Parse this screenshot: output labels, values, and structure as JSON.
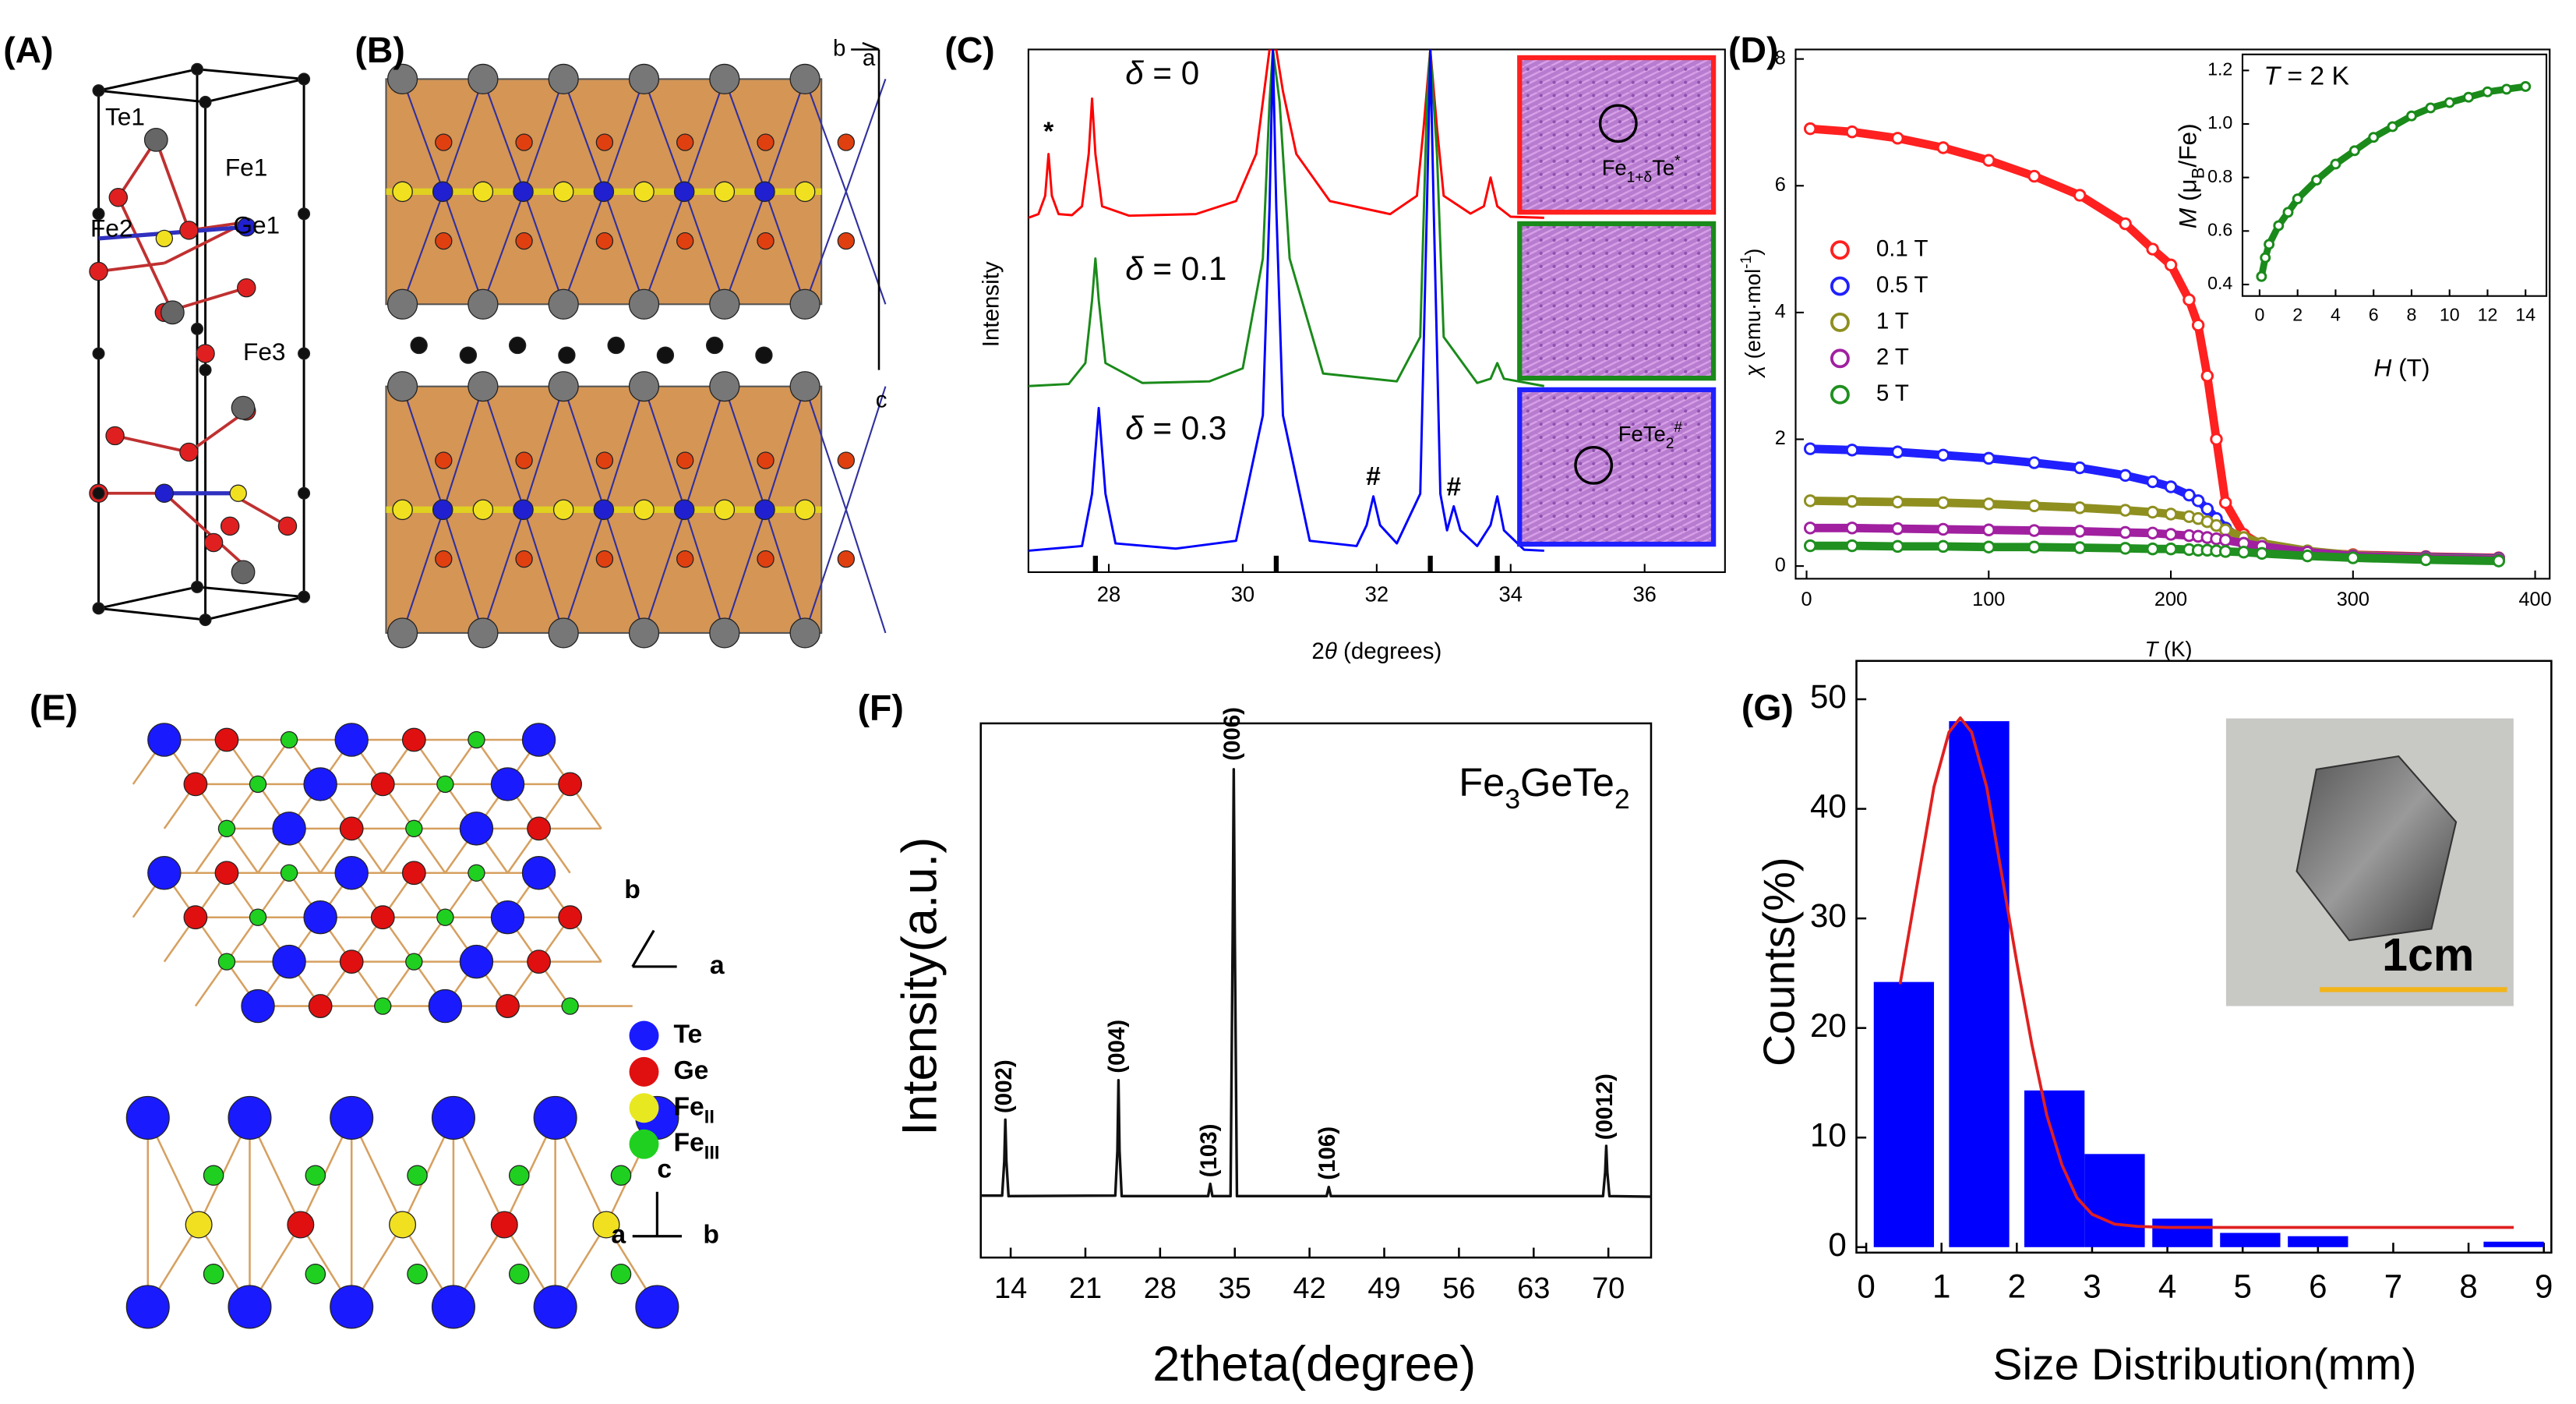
{
  "panel_labels": [
    "(A)",
    "(B)",
    "(C)",
    "(D)",
    "(E)",
    "(F)",
    "(G)"
  ],
  "panel_a": {
    "atom_labels": [
      "Te1",
      "Fe1",
      "Fe2",
      "Ge1",
      "Fe3"
    ]
  },
  "panel_b": {
    "axis_labels": [
      "b",
      "a",
      "c"
    ]
  },
  "panel_e": {
    "legend": [
      {
        "name": "Te",
        "color": "#1a1aff"
      },
      {
        "name": "Ge",
        "color": "#e01010"
      },
      {
        "name": [
          {
            "t": "Fe"
          },
          {
            "t": "II",
            "s": "sub"
          }
        ],
        "color": "#e8e820"
      },
      {
        "name": [
          {
            "t": "Fe"
          },
          {
            "t": "III",
            "s": "sub"
          }
        ],
        "color": "#20d020"
      }
    ],
    "axis_labels": [
      "b",
      "a",
      "c",
      "a",
      "b"
    ]
  },
  "chart_data": [
    {
      "type": "line",
      "y_label": "Intensity",
      "x_label": [
        {
          "t": "2"
        },
        {
          "t": "θ",
          "s": "i"
        },
        {
          "t": " (degrees)"
        }
      ],
      "xlim": [
        26.8,
        37.2
      ],
      "xticks": [
        28,
        30,
        32,
        34,
        36
      ],
      "ylim": [
        0,
        100
      ],
      "series": [
        {
          "name": [
            {
              "t": "δ",
              "s": "i"
            },
            {
              "t": " = 0"
            }
          ],
          "color": "#ff0000",
          "x": [
            26.8,
            26.95,
            27.05,
            27.1,
            27.15,
            27.25,
            27.45,
            27.6,
            27.7,
            27.75,
            27.8,
            27.9,
            28.3,
            29.3,
            29.9,
            30.2,
            30.3,
            30.4,
            30.5,
            30.6,
            30.8,
            31.3,
            32.2,
            32.6,
            32.7,
            32.8,
            32.9,
            33.0,
            33.4,
            33.6,
            33.7,
            33.8,
            34.0,
            34.5
          ],
          "values": [
            67.8,
            68.5,
            72,
            80,
            72,
            68.5,
            68.3,
            70,
            80,
            90.6,
            80,
            70,
            68.2,
            68.5,
            71,
            80,
            90,
            100,
            100,
            92,
            80,
            71,
            68.5,
            72,
            85,
            100,
            85,
            72,
            68.6,
            70,
            75.5,
            70,
            68,
            67.8
          ]
        },
        {
          "name": [
            {
              "t": "δ",
              "s": "i"
            },
            {
              "t": " = 0.1"
            }
          ],
          "color": "#1a8a1a",
          "x": [
            26.8,
            27.4,
            27.65,
            27.75,
            27.8,
            27.85,
            27.95,
            28.5,
            29.5,
            30.0,
            30.3,
            30.4,
            30.45,
            30.55,
            30.7,
            31.2,
            32.3,
            32.65,
            32.75,
            32.8,
            32.9,
            33.0,
            33.5,
            33.7,
            33.8,
            33.9,
            34.5
          ],
          "values": [
            35.6,
            36,
            40,
            52,
            60,
            52,
            40,
            36.2,
            36.5,
            39,
            60,
            90,
            100,
            90,
            60,
            38,
            36.5,
            45,
            90,
            100,
            80,
            45,
            36.2,
            37,
            40,
            37,
            35.6
          ]
        },
        {
          "name": [
            {
              "t": "δ",
              "s": "i"
            },
            {
              "t": " = 0.3"
            }
          ],
          "color": "#0000ff",
          "x": [
            26.8,
            27.6,
            27.75,
            27.85,
            27.95,
            28.1,
            29,
            29.9,
            30.3,
            30.4,
            30.45,
            30.5,
            30.6,
            31,
            31.7,
            31.85,
            31.95,
            32.05,
            32.3,
            32.65,
            32.75,
            32.8,
            32.85,
            32.95,
            33.05,
            33.15,
            33.25,
            33.5,
            33.7,
            33.8,
            33.9,
            34.2,
            34.5
          ],
          "values": [
            4.1,
            5,
            15,
            31.4,
            15,
            5.5,
            4.5,
            6,
            30,
            70,
            100,
            70,
            30,
            6,
            5,
            9,
            14.5,
            9,
            5.5,
            15,
            70,
            100,
            70,
            15,
            8,
            12.6,
            8,
            5,
            9,
            14.5,
            8,
            4.3,
            4.1
          ]
        }
      ],
      "annotations": [
        {
          "text": "*",
          "x": 27.1,
          "y": 84
        },
        {
          "text": "#",
          "x": 31.95,
          "y": 18
        },
        {
          "text": "#",
          "x": 33.15,
          "y": 16
        }
      ],
      "reference_peaks": [
        27.8,
        30.5,
        32.8,
        33.8
      ],
      "insets": [
        {
          "border": "#ff2020",
          "label": [
            {
              "t": "Fe"
            },
            {
              "t": "1+δ",
              "s": "sub"
            },
            {
              "t": "Te"
            },
            {
              "t": "*",
              "s": "sup"
            }
          ]
        },
        {
          "border": "#1a8a1a"
        },
        {
          "border": "#2020ff",
          "label": [
            {
              "t": "FeTe"
            },
            {
              "t": "2",
              "s": "sub"
            },
            {
              "t": "#",
              "s": "sup"
            }
          ]
        }
      ]
    },
    {
      "type": "scatter",
      "y_label": [
        {
          "t": "χ",
          "s": "i"
        },
        {
          "t": " (emu·mol"
        },
        {
          "t": "-1",
          "s": "sup"
        },
        {
          "t": ")"
        }
      ],
      "x_label": [
        {
          "t": "T",
          "s": "i"
        },
        {
          "t": " (K)"
        }
      ],
      "xlim": [
        -6,
        408
      ],
      "xticks": [
        0,
        100,
        200,
        300,
        400
      ],
      "ylim": [
        -0.2,
        8.15
      ],
      "yticks": [
        0,
        2,
        4,
        6,
        8
      ],
      "legend": "left",
      "series": [
        {
          "name": "0.1 T",
          "color": "#ff2020",
          "x": [
            2,
            25,
            50,
            75,
            100,
            125,
            150,
            175,
            190,
            200,
            210,
            215,
            220,
            225,
            230,
            240,
            250,
            275,
            300,
            340,
            380
          ],
          "values": [
            6.9,
            6.85,
            6.75,
            6.6,
            6.4,
            6.15,
            5.85,
            5.4,
            5.0,
            4.75,
            4.2,
            3.8,
            3.0,
            2.0,
            1.0,
            0.5,
            0.33,
            0.22,
            0.18,
            0.15,
            0.13
          ]
        },
        {
          "name": "0.5 T",
          "color": "#2020ff",
          "x": [
            2,
            25,
            50,
            75,
            100,
            125,
            150,
            175,
            190,
            200,
            210,
            215,
            220,
            225,
            230,
            240,
            250,
            275,
            300,
            340,
            380
          ],
          "values": [
            1.85,
            1.83,
            1.8,
            1.75,
            1.7,
            1.63,
            1.55,
            1.43,
            1.33,
            1.25,
            1.12,
            1.03,
            0.9,
            0.75,
            0.6,
            0.4,
            0.3,
            0.22,
            0.17,
            0.14,
            0.12
          ]
        },
        {
          "name": "1 T",
          "color": "#8f8f20",
          "x": [
            2,
            25,
            50,
            75,
            100,
            125,
            150,
            175,
            190,
            200,
            210,
            215,
            220,
            225,
            230,
            240,
            250,
            275,
            300,
            340,
            380
          ],
          "values": [
            1.03,
            1.02,
            1.01,
            1.0,
            0.98,
            0.95,
            0.92,
            0.88,
            0.85,
            0.82,
            0.78,
            0.75,
            0.7,
            0.64,
            0.57,
            0.45,
            0.36,
            0.24,
            0.17,
            0.13,
            0.11
          ]
        },
        {
          "name": "2 T",
          "color": "#a020a0",
          "x": [
            2,
            25,
            50,
            75,
            100,
            125,
            150,
            175,
            190,
            200,
            210,
            215,
            220,
            225,
            230,
            240,
            250,
            275,
            300,
            340,
            380
          ],
          "values": [
            0.6,
            0.6,
            0.59,
            0.58,
            0.57,
            0.56,
            0.55,
            0.53,
            0.52,
            0.5,
            0.48,
            0.47,
            0.45,
            0.43,
            0.41,
            0.36,
            0.31,
            0.22,
            0.16,
            0.12,
            0.1
          ]
        },
        {
          "name": "5 T",
          "color": "#209020",
          "x": [
            2,
            25,
            50,
            75,
            100,
            125,
            150,
            175,
            190,
            200,
            210,
            215,
            220,
            225,
            230,
            240,
            250,
            275,
            300,
            340,
            380
          ],
          "values": [
            0.32,
            0.32,
            0.31,
            0.31,
            0.3,
            0.3,
            0.29,
            0.28,
            0.27,
            0.27,
            0.26,
            0.25,
            0.25,
            0.24,
            0.23,
            0.22,
            0.2,
            0.16,
            0.13,
            0.1,
            0.08
          ]
        }
      ]
    },
    {
      "type": "scatter",
      "title": [
        {
          "t": "T",
          "s": "i"
        },
        {
          "t": " = 2 K"
        }
      ],
      "y_label": [
        {
          "t": "M",
          "s": "i"
        },
        {
          "t": " (μ"
        },
        {
          "t": "B",
          "s": "sub"
        },
        {
          "t": "/Fe)"
        }
      ],
      "x_label": [
        {
          "t": "H",
          "s": "i"
        },
        {
          "t": " (T)"
        }
      ],
      "xlim": [
        -0.9,
        15.1
      ],
      "xticks": [
        0,
        2,
        4,
        6,
        8,
        10,
        12,
        14
      ],
      "ylim": [
        0.357,
        1.26
      ],
      "yticks": [
        0.4,
        0.6,
        0.8,
        {
          "value": 1,
          "label": "1.0"
        },
        1.2
      ],
      "series": [
        {
          "color": "#1a8a1a",
          "x": [
            0.1,
            0.3,
            0.5,
            1,
            1.5,
            2,
            3,
            4,
            5,
            6,
            7,
            8,
            9,
            10,
            11,
            12,
            13,
            14
          ],
          "values": [
            0.43,
            0.5,
            0.55,
            0.62,
            0.67,
            0.72,
            0.79,
            0.85,
            0.9,
            0.95,
            0.99,
            1.03,
            1.06,
            1.08,
            1.1,
            1.12,
            1.13,
            1.14
          ]
        }
      ]
    },
    {
      "type": "line",
      "title": [
        {
          "t": "Fe"
        },
        {
          "t": "3",
          "s": "sub"
        },
        {
          "t": "GeTe"
        },
        {
          "t": "2",
          "s": "sub"
        }
      ],
      "y_label": "Intensity(a.u.)",
      "x_label": "2theta(degree)",
      "xlim": [
        11.2,
        74
      ],
      "xticks": [
        14,
        21,
        28,
        35,
        42,
        49,
        56,
        63,
        70
      ],
      "ylim": [
        0,
        100
      ],
      "series": [
        {
          "color": "#111111",
          "x": [
            11.2,
            13.2,
            13.4,
            13.5,
            13.6,
            13.8,
            23.8,
            24.0,
            24.1,
            24.2,
            24.4,
            32.5,
            32.7,
            32.9,
            34.6,
            34.8,
            34.9,
            35.0,
            35.2,
            43.6,
            43.8,
            44.0,
            69.5,
            69.7,
            69.8,
            69.9,
            70.1,
            74
          ],
          "values": [
            11.6,
            11.6,
            18,
            25.8,
            18,
            11.5,
            11.6,
            20,
            33.2,
            20,
            11.5,
            11.5,
            13.8,
            11.5,
            11.5,
            60,
            91.4,
            60,
            11.5,
            11.5,
            13.2,
            11.5,
            11.5,
            16,
            20.9,
            16,
            11.5,
            11.4
          ]
        }
      ],
      "annotations": [
        {
          "text": "(002)",
          "x": 13.5,
          "y": 27
        },
        {
          "text": "(004)",
          "x": 24.1,
          "y": 34.5
        },
        {
          "text": "(103)",
          "x": 32.7,
          "y": 15
        },
        {
          "text": "(006)",
          "x": 34.9,
          "y": 93
        },
        {
          "text": "(106)",
          "x": 43.8,
          "y": 14.5
        },
        {
          "text": "(0012)",
          "x": 69.8,
          "y": 22
        }
      ]
    },
    {
      "type": "bar",
      "y_label": "Counts(%)",
      "x_label": "Size Distribution(mm)",
      "xlim": [
        -0.13,
        9.1
      ],
      "xticks": [
        0,
        1,
        2,
        3,
        4,
        5,
        6,
        7,
        8,
        9
      ],
      "ylim": [
        -0.5,
        53.5
      ],
      "yticks": [
        0,
        10,
        20,
        30,
        40,
        50
      ],
      "color": "#0000ff",
      "x": [
        0.5,
        1.5,
        2.5,
        3.3,
        4.2,
        5.1,
        6.0,
        8.6
      ],
      "values": [
        24.2,
        48,
        14.3,
        8.5,
        2.6,
        1.3,
        1.0,
        0.5
      ],
      "fit": {
        "color": "#e02020",
        "x": [
          0.45,
          0.7,
          0.9,
          1.1,
          1.25,
          1.4,
          1.6,
          1.8,
          2.0,
          2.2,
          2.4,
          2.6,
          2.8,
          3.0,
          3.3,
          3.6,
          4,
          5,
          6,
          7,
          8,
          8.6
        ],
        "values": [
          24,
          34,
          42,
          47,
          48.3,
          47,
          42,
          34,
          26,
          18.5,
          12,
          7.5,
          4.5,
          3,
          2.1,
          1.9,
          1.8,
          1.8,
          1.8,
          1.8,
          1.8,
          1.8
        ]
      },
      "inset_label": "1cm"
    }
  ]
}
